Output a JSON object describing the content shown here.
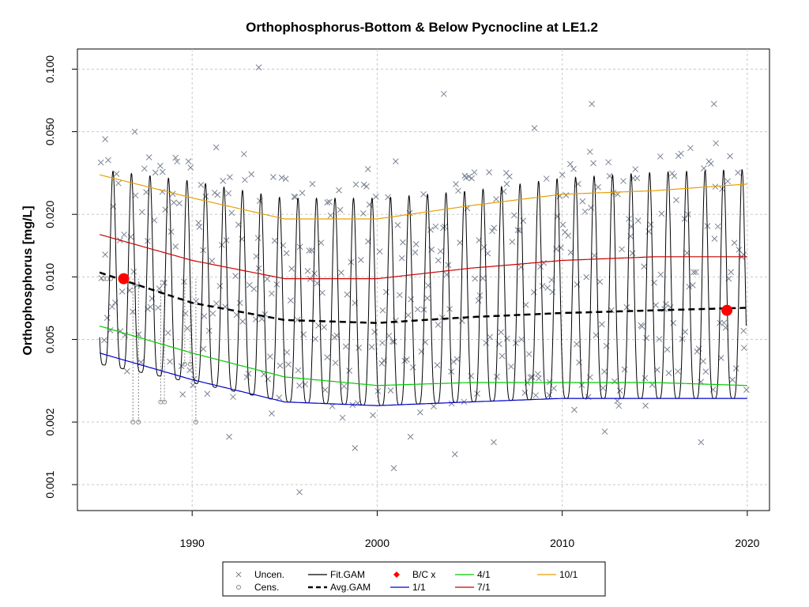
{
  "chart_data": {
    "type": "line",
    "title": "Orthophosphorus-Bottom & Below Pycnocline at LE1.2",
    "ylabel": "Orthophosphorus [mg/L]",
    "xlabel": "",
    "y_scale": "log",
    "ylim": [
      0.00075,
      0.125
    ],
    "xlim": [
      1983.8,
      2021.2
    ],
    "x_ticks": [
      {
        "value": 1990,
        "label": "1990"
      },
      {
        "value": 2000,
        "label": "2000"
      },
      {
        "value": 2010,
        "label": "2010"
      },
      {
        "value": 2020,
        "label": "2020"
      }
    ],
    "y_ticks": [
      {
        "value": 0.001,
        "label": "0.001"
      },
      {
        "value": 0.002,
        "label": "0.002"
      },
      {
        "value": 0.005,
        "label": "0.005"
      },
      {
        "value": 0.01,
        "label": "0.010"
      },
      {
        "value": 0.02,
        "label": "0.020"
      },
      {
        "value": 0.05,
        "label": "0.050"
      },
      {
        "value": 0.1,
        "label": "0.100"
      }
    ],
    "grid": true,
    "legend_position": "bottom",
    "series": [
      {
        "name": "1/1",
        "color": "#0000cc",
        "x": [
          1985,
          1990,
          1995,
          2000,
          2005,
          2010,
          2015,
          2020
        ],
        "y": [
          0.0043,
          0.0032,
          0.0025,
          0.0024,
          0.0025,
          0.0026,
          0.0026,
          0.0026
        ]
      },
      {
        "name": "4/1",
        "color": "#00cc00",
        "x": [
          1985,
          1990,
          1995,
          2000,
          2005,
          2010,
          2015,
          2020
        ],
        "y": [
          0.0058,
          0.0043,
          0.0033,
          0.003,
          0.0031,
          0.0031,
          0.0031,
          0.003
        ]
      },
      {
        "name": "7/1",
        "color": "#cc0000",
        "x": [
          1985,
          1990,
          1995,
          2000,
          2005,
          2010,
          2015,
          2020
        ],
        "y": [
          0.016,
          0.012,
          0.0098,
          0.0098,
          0.011,
          0.012,
          0.0125,
          0.0125
        ]
      },
      {
        "name": "10/1",
        "color": "#e69f00",
        "x": [
          1985,
          1990,
          1995,
          2000,
          2005,
          2010,
          2015,
          2020
        ],
        "y": [
          0.031,
          0.024,
          0.019,
          0.019,
          0.022,
          0.025,
          0.026,
          0.028
        ]
      },
      {
        "name": "Avg.GAM",
        "color": "#000000",
        "x": [
          1985,
          1990,
          1995,
          2000,
          2005,
          2010,
          2015,
          2020
        ],
        "y": [
          0.0105,
          0.0075,
          0.0062,
          0.006,
          0.0064,
          0.0067,
          0.0069,
          0.0071
        ]
      },
      {
        "name": "Fit.GAM",
        "color": "#000000",
        "seasonal_min": [
          0.0038,
          0.0031,
          0.0025,
          0.0024,
          0.0025,
          0.0026,
          0.0026,
          0.0026
        ],
        "seasonal_max": [
          0.033,
          0.029,
          0.024,
          0.024,
          0.026,
          0.03,
          0.032,
          0.033
        ],
        "x": [
          1985,
          1990,
          1995,
          2000,
          2005,
          2010,
          2015,
          2020
        ]
      }
    ],
    "bc_points": [
      {
        "x": 1986.3,
        "y": 0.0098
      },
      {
        "x": 2018.9,
        "y": 0.0069
      }
    ],
    "uncen_points": {
      "x": [
        1985.3,
        1986.1,
        1986.9,
        1987.6,
        1988.4,
        1989.1,
        1989.8,
        1990.6,
        1991.3,
        1992.0,
        1992.8,
        1993.6,
        1994.3,
        1995.1,
        1995.8,
        1996.5,
        1997.3,
        1998.0,
        1998.8,
        1999.5,
        2000.3,
        2001.0,
        2001.8,
        2002.5,
        2003.3,
        2004.0,
        2004.8,
        2005.5,
        2006.3,
        2007.0,
        2007.8,
        2008.5,
        2009.3,
        2010.0,
        2010.8,
        2011.5,
        2012.3,
        2013.0,
        2013.8,
        2014.5,
        2015.3,
        2016.0,
        2016.8,
        2017.5,
        2018.3,
        2019.0,
        2019.8,
        1993.6,
        2003.6,
        2011.6,
        2018.2,
        1995.8,
        2000.9,
        2004.2
      ],
      "y": [
        0.046,
        0.015,
        0.05,
        0.007,
        0.032,
        0.014,
        0.036,
        0.0045,
        0.042,
        0.0017,
        0.039,
        0.011,
        0.0022,
        0.013,
        0.003,
        0.028,
        0.0041,
        0.021,
        0.0015,
        0.033,
        0.0069,
        0.036,
        0.0017,
        0.025,
        0.012,
        0.0035,
        0.03,
        0.015,
        0.0016,
        0.028,
        0.005,
        0.052,
        0.0027,
        0.031,
        0.0092,
        0.04,
        0.0018,
        0.025,
        0.013,
        0.0024,
        0.038,
        0.006,
        0.02,
        0.0016,
        0.044,
        0.0098,
        0.0055,
        0.102,
        0.076,
        0.068,
        0.068,
        0.00092,
        0.0012,
        0.0014
      ]
    },
    "cens_points": {
      "x": [
        1985.2,
        1985.4,
        1985.6,
        1986.8,
        1987.1,
        1988.3,
        1988.5,
        1989.6,
        1989.9,
        1990.2
      ],
      "y": [
        0.0098,
        0.0098,
        0.0098,
        0.002,
        0.002,
        0.0025,
        0.0025,
        0.0038,
        0.0038,
        0.002
      ]
    },
    "legend": [
      {
        "label": "Uncen.",
        "symbol": "x",
        "color": "#7a8494"
      },
      {
        "label": "Cens.",
        "symbol": "circle",
        "color": "#888888"
      },
      {
        "label": "Fit.GAM",
        "symbol": "line",
        "color": "#000000"
      },
      {
        "label": "Avg.GAM",
        "symbol": "dashed",
        "color": "#000000"
      },
      {
        "label": "B/C x",
        "symbol": "diamond",
        "color": "#ff0000"
      },
      {
        "label": "1/1",
        "symbol": "line",
        "color": "#0000cc"
      },
      {
        "label": "4/1",
        "symbol": "line",
        "color": "#00cc00"
      },
      {
        "label": "7/1",
        "symbol": "line",
        "color": "#cc0000"
      },
      {
        "label": "10/1",
        "symbol": "line",
        "color": "#e69f00"
      }
    ]
  }
}
